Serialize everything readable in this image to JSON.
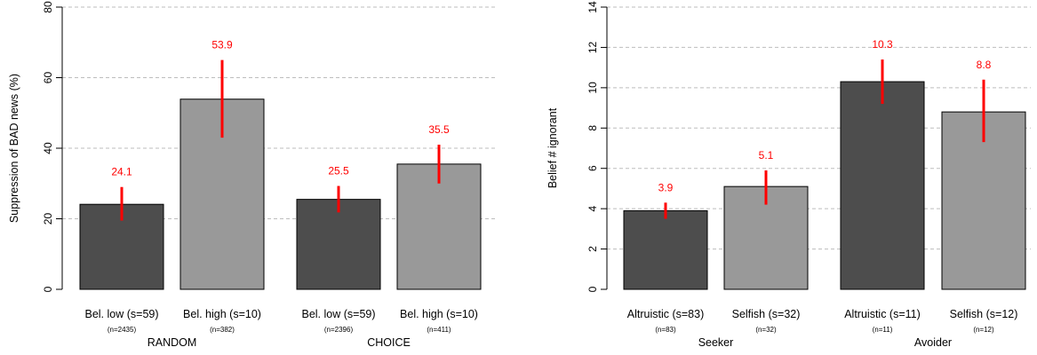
{
  "colors": {
    "dark_bar": "#4d4d4d",
    "light_bar": "#999999",
    "error_bar": "#ff0000",
    "value_label": "#ff0000",
    "grid": "#bdbdbd",
    "axis": "#000000"
  },
  "chart_data": [
    {
      "type": "bar",
      "title": "",
      "xlabel": "",
      "ylabel": "Suppression of BAD news (%)",
      "ylim": [
        0,
        80
      ],
      "yticks": [
        0,
        20,
        40,
        60,
        80
      ],
      "grid": true,
      "groups": [
        "RANDOM",
        "CHOICE"
      ],
      "categories": [
        "Bel. low (s=59)",
        "Bel. high (s=10)",
        "Bel. low (s=59)",
        "Bel. high (s=10)"
      ],
      "sublabels": [
        "(n=2435)",
        "(n=382)",
        "(n=2396)",
        "(n=411)"
      ],
      "values": [
        24.1,
        53.9,
        25.5,
        35.5
      ],
      "value_labels": [
        "24.1",
        "53.9",
        "25.5",
        "35.5"
      ],
      "error_low": [
        19.5,
        43.0,
        21.8,
        30.0
      ],
      "error_high": [
        29.0,
        65.0,
        29.3,
        41.0
      ],
      "bar_colors": [
        "dark",
        "light",
        "dark",
        "light"
      ]
    },
    {
      "type": "bar",
      "title": "",
      "xlabel": "",
      "ylabel": "Belief # ignorant",
      "ylim": [
        0,
        14
      ],
      "yticks": [
        0,
        2,
        4,
        6,
        8,
        10,
        12,
        14
      ],
      "grid": true,
      "groups": [
        "Seeker",
        "Avoider"
      ],
      "categories": [
        "Altruistic (s=83)",
        "Selfish (s=32)",
        "Altruistic (s=11)",
        "Selfish (s=12)"
      ],
      "sublabels": [
        "(n=83)",
        "(n=32)",
        "(n=11)",
        "(n=12)"
      ],
      "values": [
        3.9,
        5.1,
        10.3,
        8.8
      ],
      "value_labels": [
        "3.9",
        "5.1",
        "10.3",
        "8.8"
      ],
      "error_low": [
        3.5,
        4.2,
        9.2,
        7.3
      ],
      "error_high": [
        4.3,
        5.9,
        11.4,
        10.4
      ],
      "bar_colors": [
        "dark",
        "light",
        "dark",
        "light"
      ]
    }
  ]
}
